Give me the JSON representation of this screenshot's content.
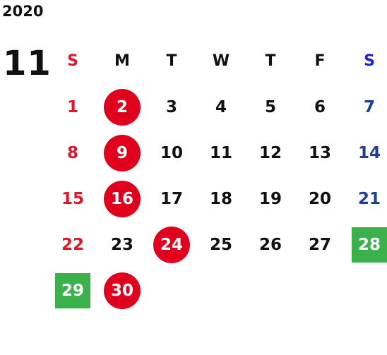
{
  "year": "2020",
  "month": "11",
  "weekdays": [
    "S",
    "M",
    "T",
    "W",
    "T",
    "F",
    "S"
  ],
  "colors": {
    "sunday": "#e0162b",
    "saturday": "#1f3f96",
    "circle_highlight": "#e0001d",
    "square_highlight": "#3ab14a"
  },
  "weeks": [
    [
      {
        "day": "1",
        "mark": "none"
      },
      {
        "day": "2",
        "mark": "circle"
      },
      {
        "day": "3",
        "mark": "none"
      },
      {
        "day": "4",
        "mark": "none"
      },
      {
        "day": "5",
        "mark": "none"
      },
      {
        "day": "6",
        "mark": "none"
      },
      {
        "day": "7",
        "mark": "none"
      }
    ],
    [
      {
        "day": "8",
        "mark": "none"
      },
      {
        "day": "9",
        "mark": "circle"
      },
      {
        "day": "10",
        "mark": "none"
      },
      {
        "day": "11",
        "mark": "none"
      },
      {
        "day": "12",
        "mark": "none"
      },
      {
        "day": "13",
        "mark": "none"
      },
      {
        "day": "14",
        "mark": "none"
      }
    ],
    [
      {
        "day": "15",
        "mark": "none"
      },
      {
        "day": "16",
        "mark": "circle"
      },
      {
        "day": "17",
        "mark": "none"
      },
      {
        "day": "18",
        "mark": "none"
      },
      {
        "day": "19",
        "mark": "none"
      },
      {
        "day": "20",
        "mark": "none"
      },
      {
        "day": "21",
        "mark": "none"
      }
    ],
    [
      {
        "day": "22",
        "mark": "none"
      },
      {
        "day": "23",
        "mark": "none"
      },
      {
        "day": "24",
        "mark": "circle"
      },
      {
        "day": "25",
        "mark": "none"
      },
      {
        "day": "26",
        "mark": "none"
      },
      {
        "day": "27",
        "mark": "none"
      },
      {
        "day": "28",
        "mark": "square"
      }
    ],
    [
      {
        "day": "29",
        "mark": "square"
      },
      {
        "day": "30",
        "mark": "circle"
      },
      {
        "day": "",
        "mark": "none"
      },
      {
        "day": "",
        "mark": "none"
      },
      {
        "day": "",
        "mark": "none"
      },
      {
        "day": "",
        "mark": "none"
      },
      {
        "day": "",
        "mark": "none"
      }
    ]
  ]
}
